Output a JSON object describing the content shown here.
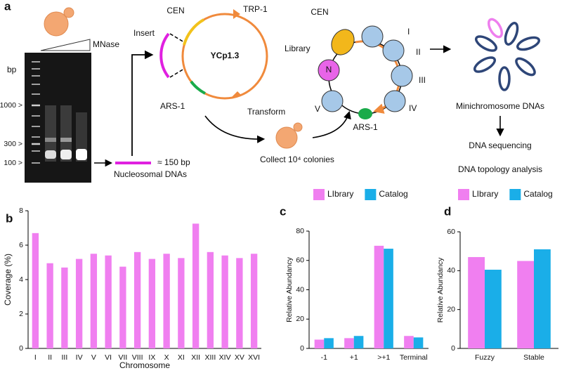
{
  "diagram": {
    "panel_label": "a",
    "mnase": "MNase",
    "bp_unit": "bp",
    "gel_markers": [
      "1000 >",
      "300 >",
      "100 >"
    ],
    "insert": "Insert",
    "plasmid": {
      "name": "YCp1.3",
      "cen": "CEN",
      "trp": "TRP-1",
      "ars": "ARS-1"
    },
    "fragment_size": "≈ 150 bp",
    "fragment_label": "Nucleosomal DNAs",
    "transform": "Transform",
    "collect": "Collect 10⁴ colonies",
    "library": {
      "label": "Library",
      "nucleosome": "N",
      "cen": "CEN",
      "ars": "ARS-1",
      "beads": [
        "I",
        "II",
        "III",
        "IV",
        "V"
      ]
    },
    "minichromosome": "Minichromosome DNAs",
    "steps": [
      "DNA sequencing",
      "DNA topology analysis"
    ]
  },
  "chart_data": [
    {
      "type": "bar",
      "panel_label": "b",
      "ylabel": "Coverage (%)",
      "xlabel": "Chromosome",
      "categories": [
        "I",
        "II",
        "III",
        "IV",
        "V",
        "VI",
        "VII",
        "VIII",
        "IX",
        "X",
        "XI",
        "XII",
        "XIII",
        "XIV",
        "XV",
        "XVI"
      ],
      "values": [
        6.7,
        4.95,
        4.7,
        5.2,
        5.5,
        5.4,
        4.75,
        5.6,
        5.2,
        5.5,
        5.25,
        7.25,
        5.6,
        5.4,
        5.25,
        5.5
      ],
      "color": "#f07ff0",
      "ylim": [
        0,
        8
      ],
      "yticks": [
        0,
        2,
        4,
        6,
        8
      ]
    },
    {
      "type": "bar",
      "panel_label": "c",
      "ylabel": "Relative Abundancy",
      "categories": [
        "-1",
        "+1",
        ">+1",
        "Terminal"
      ],
      "series": [
        {
          "name": "LIbrary",
          "color": "#f07ff0",
          "values": [
            6,
            7,
            70,
            8.5
          ]
        },
        {
          "name": "Catalog",
          "color": "#1aaee8",
          "values": [
            7,
            8.5,
            68,
            7.5
          ]
        }
      ],
      "ylim": [
        0,
        80
      ],
      "yticks": [
        0,
        20,
        40,
        60,
        80
      ]
    },
    {
      "type": "bar",
      "panel_label": "d",
      "ylabel": "Relative Abundancy",
      "categories": [
        "Fuzzy",
        "Stable"
      ],
      "series": [
        {
          "name": "LIbrary",
          "color": "#f07ff0",
          "values": [
            47,
            45
          ]
        },
        {
          "name": "Catalog",
          "color": "#1aaee8",
          "values": [
            40.5,
            51
          ]
        }
      ],
      "ylim": [
        0,
        60
      ],
      "yticks": [
        0,
        20,
        40,
        60
      ]
    }
  ]
}
